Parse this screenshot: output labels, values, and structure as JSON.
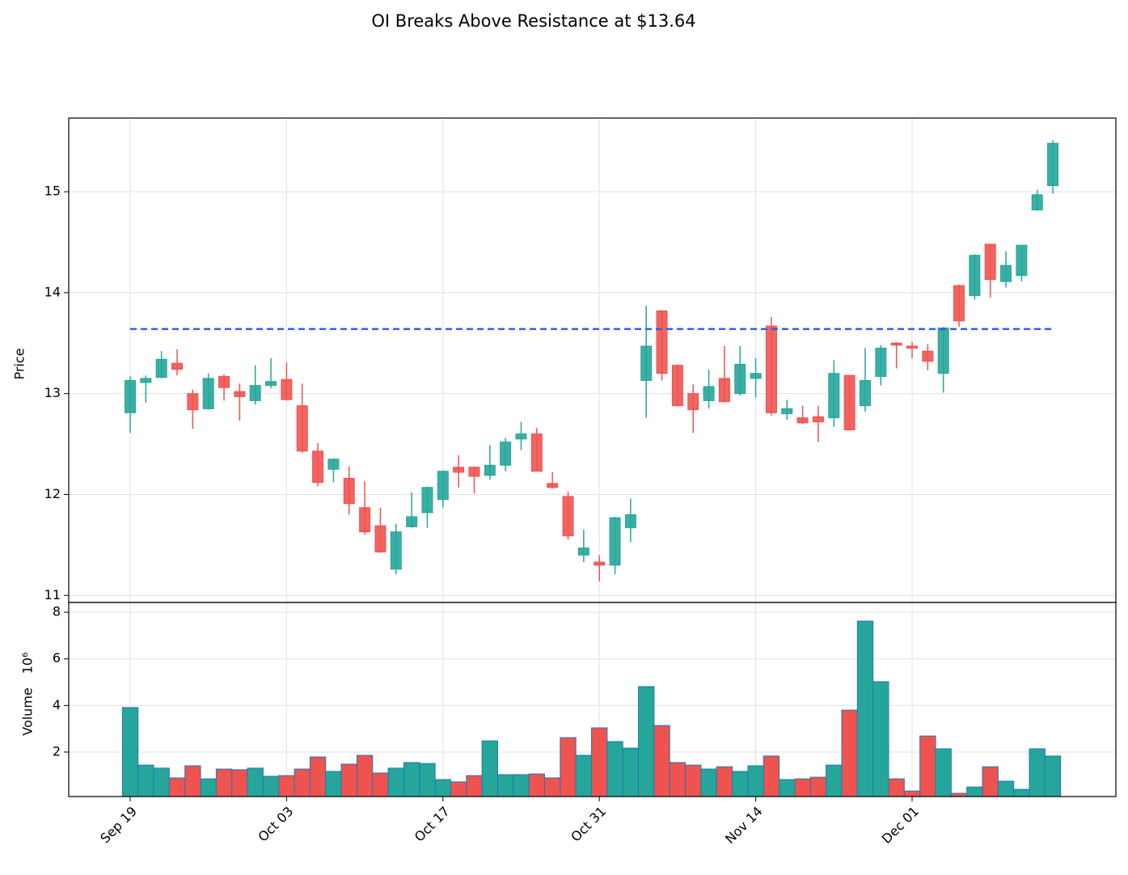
{
  "chart_data": {
    "type": "candlestick",
    "title": "OI Breaks Above Resistance at $13.64",
    "ylabel": "Price",
    "volume_ylabel": "Volume",
    "volume_scale": "10⁶",
    "categories": [
      "Sep 19",
      null,
      null,
      null,
      null,
      null,
      null,
      null,
      null,
      null,
      "Oct 03",
      null,
      null,
      null,
      null,
      null,
      null,
      null,
      null,
      null,
      "Oct 17",
      null,
      null,
      null,
      null,
      null,
      null,
      null,
      null,
      null,
      "Oct 31",
      null,
      null,
      null,
      null,
      null,
      null,
      null,
      null,
      null,
      "Nov 14",
      null,
      null,
      null,
      null,
      null,
      null,
      null,
      null,
      null,
      "Dec 01",
      null,
      null,
      null,
      null,
      null,
      null,
      null,
      null,
      null
    ],
    "open": [
      12.81,
      13.11,
      13.16,
      13.3,
      13.0,
      12.85,
      13.17,
      13.02,
      12.93,
      13.08,
      13.14,
      12.88,
      12.43,
      12.25,
      12.16,
      11.87,
      11.69,
      11.26,
      11.68,
      11.82,
      11.95,
      12.27,
      12.27,
      12.19,
      12.29,
      12.55,
      12.6,
      12.11,
      11.98,
      11.4,
      11.33,
      11.3,
      11.67,
      13.13,
      13.82,
      13.28,
      13.0,
      12.93,
      13.15,
      13.0,
      13.15,
      13.67,
      12.8,
      12.76,
      12.77,
      12.76,
      13.18,
      12.88,
      13.17,
      13.5,
      13.47,
      13.42,
      13.2,
      14.07,
      13.97,
      14.48,
      14.11,
      14.17,
      14.82,
      15.06
    ],
    "high": [
      13.17,
      13.18,
      13.42,
      13.44,
      13.04,
      13.2,
      13.19,
      13.1,
      13.28,
      13.35,
      13.31,
      13.1,
      12.51,
      12.36,
      12.28,
      12.13,
      11.87,
      11.71,
      12.02,
      12.08,
      12.24,
      12.39,
      12.28,
      12.49,
      12.56,
      12.72,
      12.66,
      12.22,
      12.03,
      11.65,
      11.4,
      11.78,
      11.96,
      13.87,
      13.82,
      13.29,
      13.09,
      13.24,
      13.47,
      13.47,
      13.35,
      13.76,
      12.94,
      12.88,
      12.88,
      13.33,
      13.18,
      13.45,
      13.48,
      13.51,
      13.51,
      13.49,
      13.66,
      14.08,
      14.38,
      14.48,
      14.41,
      14.47,
      15.02,
      15.51
    ],
    "low": [
      12.61,
      12.91,
      13.15,
      13.18,
      12.65,
      12.84,
      12.93,
      12.73,
      12.89,
      13.05,
      12.93,
      12.41,
      12.08,
      12.12,
      11.8,
      11.6,
      11.42,
      11.21,
      11.67,
      11.67,
      11.87,
      12.07,
      12.01,
      12.15,
      12.23,
      12.44,
      12.23,
      12.06,
      11.55,
      11.33,
      11.14,
      11.21,
      11.53,
      12.76,
      13.13,
      12.87,
      12.61,
      12.85,
      12.91,
      12.98,
      12.96,
      12.78,
      12.74,
      12.7,
      12.52,
      12.67,
      12.64,
      12.82,
      13.08,
      13.25,
      13.35,
      13.23,
      13.01,
      13.66,
      13.93,
      13.95,
      14.05,
      14.11,
      14.81,
      14.98
    ],
    "close": [
      13.13,
      13.15,
      13.34,
      13.24,
      12.84,
      13.15,
      13.06,
      12.97,
      13.08,
      13.12,
      12.94,
      12.43,
      12.12,
      12.35,
      11.91,
      11.63,
      11.43,
      11.63,
      11.78,
      12.07,
      12.23,
      12.22,
      12.18,
      12.29,
      12.52,
      12.6,
      12.23,
      12.07,
      11.59,
      11.47,
      11.3,
      11.77,
      11.8,
      13.47,
      13.2,
      12.88,
      12.84,
      13.07,
      12.92,
      13.29,
      13.2,
      12.81,
      12.85,
      12.71,
      12.72,
      13.2,
      12.64,
      13.13,
      13.45,
      13.48,
      13.45,
      13.32,
      13.65,
      13.72,
      14.37,
      14.13,
      14.27,
      14.47,
      14.97,
      15.48
    ],
    "volume": [
      3.91,
      1.44,
      1.31,
      0.89,
      1.41,
      0.85,
      1.27,
      1.24,
      1.31,
      0.96,
      0.99,
      1.27,
      1.79,
      1.17,
      1.48,
      1.86,
      1.1,
      1.31,
      1.55,
      1.51,
      0.82,
      0.72,
      0.99,
      2.48,
      1.03,
      1.03,
      1.06,
      0.89,
      2.62,
      1.86,
      3.04,
      2.45,
      2.17,
      4.81,
      3.14,
      1.55,
      1.44,
      1.27,
      1.37,
      1.17,
      1.41,
      1.83,
      0.82,
      0.85,
      0.92,
      1.44,
      3.8,
      7.62,
      5.02,
      0.85,
      0.33,
      2.69,
      2.14,
      0.23,
      0.5,
      1.37,
      0.75,
      0.4,
      2.14,
      1.83
    ],
    "up_color": "#26a69a",
    "down_color": "#ef5350",
    "volume_edge_color": "#1f77b4",
    "resistance": 13.64,
    "resistance_color": "#2e5ff0",
    "ylim": [
      10.93,
      15.73
    ],
    "yticks": [
      11,
      12,
      13,
      14,
      15
    ],
    "volume_ylim": [
      0.09,
      8.42
    ],
    "volume_yticks": [
      2,
      4,
      6,
      8
    ],
    "grid": true
  }
}
